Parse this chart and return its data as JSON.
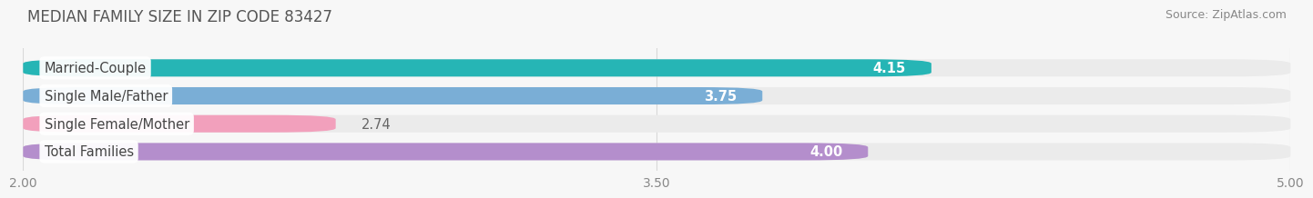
{
  "title": "MEDIAN FAMILY SIZE IN ZIP CODE 83427",
  "source": "Source: ZipAtlas.com",
  "categories": [
    "Married-Couple",
    "Single Male/Father",
    "Single Female/Mother",
    "Total Families"
  ],
  "values": [
    4.15,
    3.75,
    2.74,
    4.0
  ],
  "colors": [
    "#26b5b5",
    "#7aaed6",
    "#f2a0bc",
    "#b48ecc"
  ],
  "xlim": [
    2.0,
    5.0
  ],
  "xticks": [
    2.0,
    3.5,
    5.0
  ],
  "xtick_labels": [
    "2.00",
    "3.50",
    "5.00"
  ],
  "bar_height": 0.62,
  "background_color": "#f7f7f7",
  "bar_bg_color": "#ebebeb",
  "label_bg_color": "#ffffff",
  "value_color_inside": "#ffffff",
  "value_color_outside": "#666666",
  "label_text_color": "#444444",
  "title_color": "#555555",
  "source_color": "#888888",
  "grid_color": "#d8d8d8",
  "title_fontsize": 12,
  "label_fontsize": 10.5,
  "value_fontsize": 10.5,
  "tick_fontsize": 10,
  "source_fontsize": 9,
  "rounding_size": 0.15,
  "value_inside_threshold": 3.5
}
